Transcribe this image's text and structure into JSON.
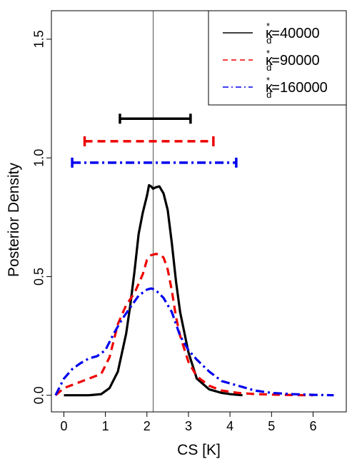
{
  "chart_data": {
    "type": "line",
    "title": "",
    "xlabel": "CS [K]",
    "ylabel": "Posterior Density",
    "xlim": [
      -0.3,
      6.8
    ],
    "ylim": [
      -0.07,
      1.62
    ],
    "xticks": [
      "0",
      "1",
      "2",
      "3",
      "4",
      "5",
      "6"
    ],
    "yticks": [
      "0.0",
      "0.5",
      "1.0",
      "1.5"
    ],
    "grid": false,
    "legend_position": "top-right",
    "reference_line_x": 2.15,
    "series": [
      {
        "name_main": "κ",
        "name_sup": "*",
        "name_sub": "d",
        "name_value": "=40000",
        "color": "#000000",
        "dash": "solid",
        "x": [
          0.0,
          0.3,
          0.6,
          0.9,
          1.1,
          1.3,
          1.5,
          1.6,
          1.7,
          1.8,
          1.9,
          2.0,
          2.05,
          2.1,
          2.15,
          2.2,
          2.3,
          2.4,
          2.5,
          2.6,
          2.7,
          2.8,
          3.0,
          3.2,
          3.5,
          3.8,
          4.0,
          4.3
        ],
        "y": [
          0.0,
          0.0,
          0.0,
          0.005,
          0.03,
          0.1,
          0.26,
          0.38,
          0.52,
          0.68,
          0.77,
          0.84,
          0.885,
          0.88,
          0.87,
          0.875,
          0.88,
          0.85,
          0.78,
          0.64,
          0.48,
          0.35,
          0.18,
          0.07,
          0.025,
          0.01,
          0.005,
          0.0
        ]
      },
      {
        "name_main": "κ",
        "name_sup": "*",
        "name_sub": "d",
        "name_value": "=90000",
        "color": "#ee0000",
        "dash": "dashed",
        "x": [
          -0.2,
          0.0,
          0.3,
          0.6,
          0.9,
          1.1,
          1.3,
          1.5,
          1.7,
          1.9,
          2.0,
          2.1,
          2.2,
          2.3,
          2.4,
          2.5,
          2.6,
          2.7,
          2.8,
          3.0,
          3.2,
          3.5,
          3.8,
          4.2,
          4.6,
          5.0,
          5.5,
          6.0
        ],
        "y": [
          0.0,
          0.03,
          0.05,
          0.07,
          0.09,
          0.16,
          0.3,
          0.38,
          0.43,
          0.51,
          0.57,
          0.59,
          0.595,
          0.595,
          0.58,
          0.53,
          0.44,
          0.33,
          0.25,
          0.14,
          0.08,
          0.04,
          0.02,
          0.01,
          0.005,
          0.003,
          0.001,
          0.0
        ]
      },
      {
        "name_main": "κ",
        "name_sup": "*",
        "name_sub": "d",
        "name_value": "=160000",
        "color": "#0000ee",
        "dash": "dashdot",
        "x": [
          -0.2,
          0.0,
          0.2,
          0.4,
          0.6,
          0.8,
          1.0,
          1.2,
          1.4,
          1.6,
          1.8,
          2.0,
          2.1,
          2.2,
          2.4,
          2.6,
          2.8,
          3.0,
          3.2,
          3.5,
          3.8,
          4.2,
          4.6,
          5.0,
          5.5,
          6.0,
          6.5
        ],
        "y": [
          0.0,
          0.07,
          0.11,
          0.135,
          0.155,
          0.165,
          0.19,
          0.26,
          0.32,
          0.37,
          0.42,
          0.445,
          0.45,
          0.445,
          0.41,
          0.35,
          0.25,
          0.19,
          0.15,
          0.1,
          0.06,
          0.04,
          0.02,
          0.01,
          0.005,
          0.002,
          0.0
        ]
      }
    ],
    "intervals": [
      {
        "series_index": 0,
        "low": 1.35,
        "high": 3.05,
        "y": 1.165
      },
      {
        "series_index": 1,
        "low": 0.5,
        "high": 3.6,
        "y": 1.07
      },
      {
        "series_index": 2,
        "low": 0.2,
        "high": 4.15,
        "y": 0.98
      }
    ]
  }
}
